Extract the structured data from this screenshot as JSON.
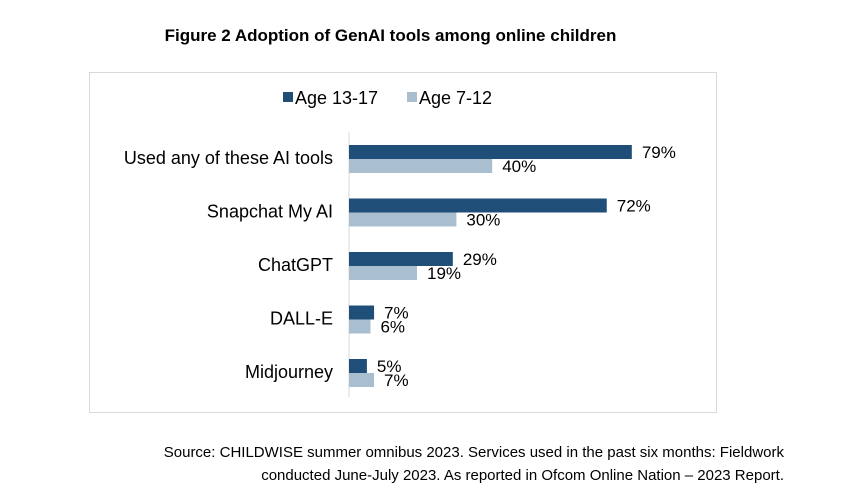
{
  "title": "Figure 2 Adoption of GenAI tools among online children",
  "chart_data": {
    "type": "bar",
    "orientation": "horizontal",
    "categories": [
      "Used any of these AI tools",
      "Snapchat My AI",
      "ChatGPT",
      "DALL-E",
      "Midjourney"
    ],
    "series": [
      {
        "name": "Age 13-17",
        "color": "#1f4e79",
        "values": [
          79,
          72,
          29,
          7,
          5
        ]
      },
      {
        "name": "Age 7-12",
        "color": "#a9bfd0",
        "values": [
          40,
          30,
          19,
          6,
          7
        ]
      }
    ],
    "value_suffix": "%",
    "xlim": [
      0,
      100
    ],
    "grid": false,
    "legend_position": "top"
  },
  "source": {
    "line1": "Source: CHILDWISE summer omnibus 2023. Services used in the past six months: Fieldwork",
    "line2": "conducted June-July 2023. As reported in Ofcom Online Nation – 2023 Report."
  }
}
